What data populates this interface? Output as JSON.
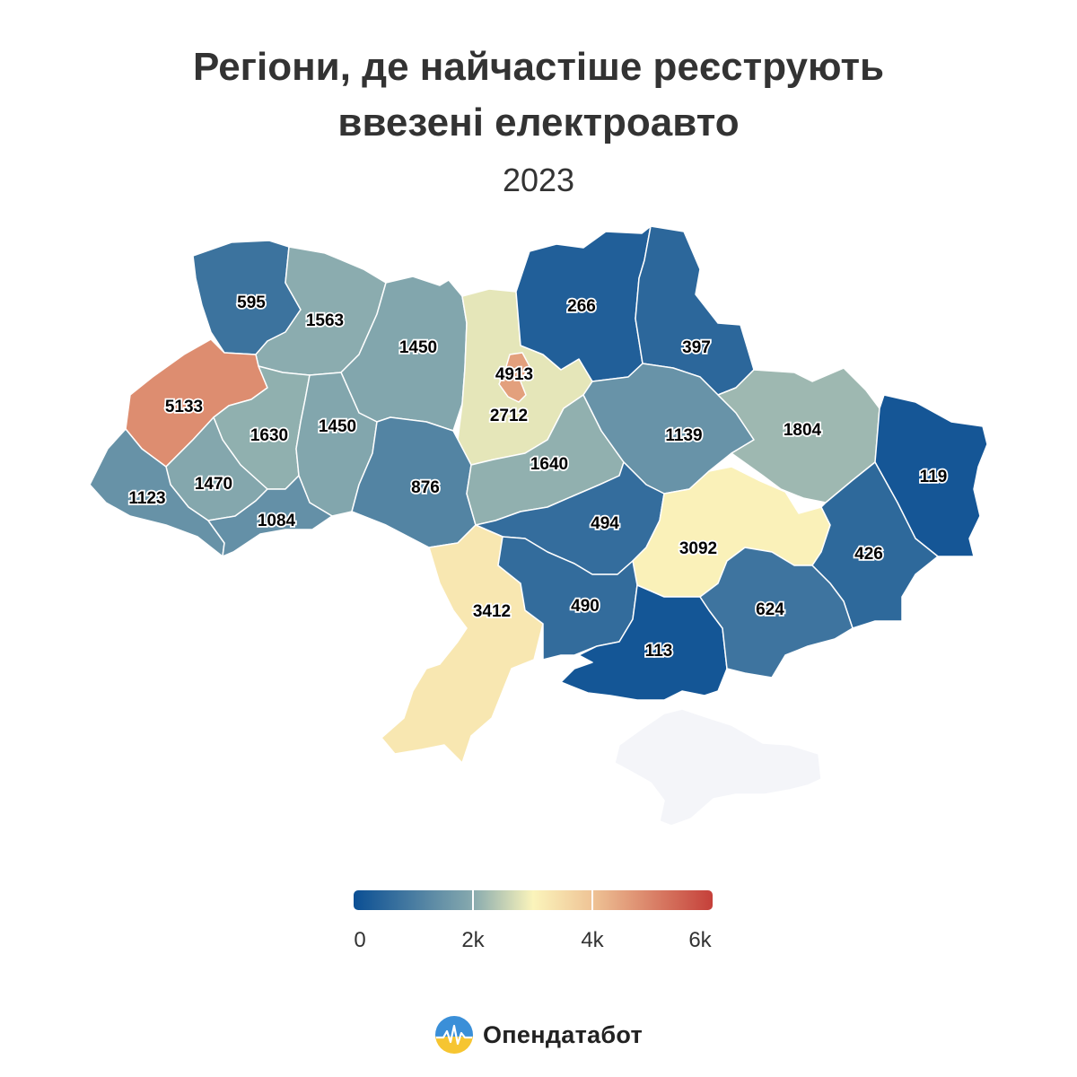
{
  "title_line1": "Регіони, де найчастіше реєструють",
  "title_line2": "ввезені електроавто",
  "subtitle": "2023",
  "map": {
    "color_scale": [
      "#0b4f94",
      "#86a9ae",
      "#fbf4bb",
      "#efc597",
      "#c5403a"
    ],
    "no_data_color": "#f4f5f9",
    "regions": [
      {
        "name": "volyn",
        "value": 595
      },
      {
        "name": "rivne",
        "value": 1563
      },
      {
        "name": "zhytomyr",
        "value": 1450
      },
      {
        "name": "kyiv-city",
        "value": 4913
      },
      {
        "name": "kyiv-oblast",
        "value": 2712
      },
      {
        "name": "chernihiv",
        "value": 266
      },
      {
        "name": "sumy",
        "value": 397
      },
      {
        "name": "lviv",
        "value": 5133
      },
      {
        "name": "ternopil",
        "value": 1630
      },
      {
        "name": "khmelnytskyi",
        "value": 1450
      },
      {
        "name": "ivano-frankivsk",
        "value": 1470
      },
      {
        "name": "zakarpattia",
        "value": 1123
      },
      {
        "name": "chernivtsi",
        "value": 1084
      },
      {
        "name": "vinnytsia",
        "value": 876
      },
      {
        "name": "cherkasy",
        "value": 1640
      },
      {
        "name": "poltava",
        "value": 1139
      },
      {
        "name": "kharkiv",
        "value": 1804
      },
      {
        "name": "luhansk",
        "value": 119
      },
      {
        "name": "kirovohrad",
        "value": 494
      },
      {
        "name": "dnipropetrovsk",
        "value": 3092
      },
      {
        "name": "donetsk",
        "value": 426
      },
      {
        "name": "odesa",
        "value": 3412
      },
      {
        "name": "mykolaiv",
        "value": 490
      },
      {
        "name": "kherson",
        "value": 113
      },
      {
        "name": "zaporizhzhia",
        "value": 624
      },
      {
        "name": "crimea",
        "value": null
      }
    ]
  },
  "legend": {
    "min": 0,
    "max": 6000,
    "ticks": [
      "0",
      "2k",
      "4k",
      "6k"
    ]
  },
  "brand": {
    "name": "Опендатабот",
    "logo_colors": [
      "#f6c531",
      "#3a8fd8"
    ]
  }
}
